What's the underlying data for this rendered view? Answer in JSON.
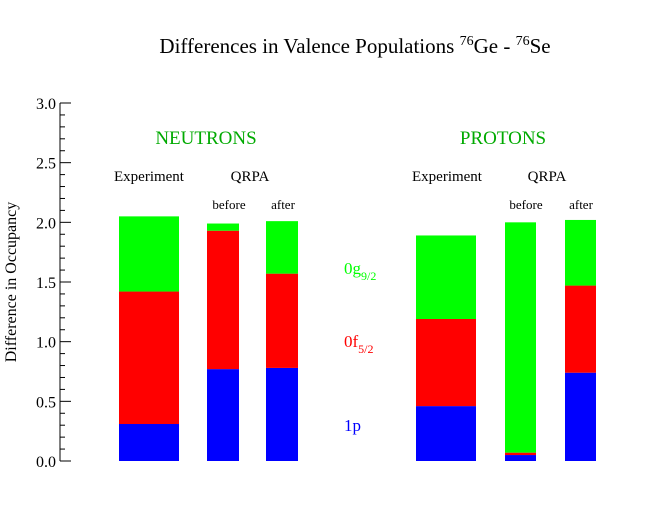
{
  "chart_data": {
    "type": "bar",
    "stacked": true,
    "title": {
      "prefix": "Differences in Valence Populations ",
      "isotope1_mass": "76",
      "isotope1_symbol": "Ge",
      "separator": " - ",
      "isotope2_mass": "76",
      "isotope2_symbol": "Se"
    },
    "ylabel": "Difference in Occupancy",
    "ylim": [
      0,
      3.0
    ],
    "yticks": [
      "0.0",
      "0.5",
      "1.0",
      "1.5",
      "2.0",
      "2.5",
      "3.0"
    ],
    "grid": false,
    "colors": {
      "1p": "#0000ff",
      "0f5/2": "#ff0000",
      "0g9/2": "#00ff00",
      "group_label": "#00aa00",
      "axis": "#000000"
    },
    "groups": [
      {
        "label": "NEUTRONS",
        "experiment_label": "Experiment",
        "qrpa_label": "QRPA",
        "bars": [
          {
            "label": "",
            "values": {
              "1p": 0.31,
              "0f5/2": 1.11,
              "0g9/2": 0.63
            }
          },
          {
            "label": "before",
            "values": {
              "1p": 0.77,
              "0f5/2": 1.16,
              "0g9/2": 0.06
            }
          },
          {
            "label": "after",
            "values": {
              "1p": 0.78,
              "0f5/2": 0.79,
              "0g9/2": 0.44
            }
          }
        ]
      },
      {
        "label": "PROTONS",
        "experiment_label": "Experiment",
        "qrpa_label": "QRPA",
        "bars": [
          {
            "label": "",
            "values": {
              "1p": 0.46,
              "0f5/2": 0.73,
              "0g9/2": 0.7
            }
          },
          {
            "label": "before",
            "values": {
              "1p": 0.05,
              "0f5/2": 0.02,
              "0g9/2": 1.93
            }
          },
          {
            "label": "after",
            "values": {
              "1p": 0.74,
              "0f5/2": 0.73,
              "0g9/2": 0.55
            }
          }
        ]
      }
    ],
    "series_labels": [
      {
        "key": "0g9/2",
        "base": "0g",
        "sub": "9/2"
      },
      {
        "key": "0f5/2",
        "base": "0f",
        "sub": "5/2"
      },
      {
        "key": "1p",
        "base": "1p",
        "sub": ""
      }
    ]
  }
}
